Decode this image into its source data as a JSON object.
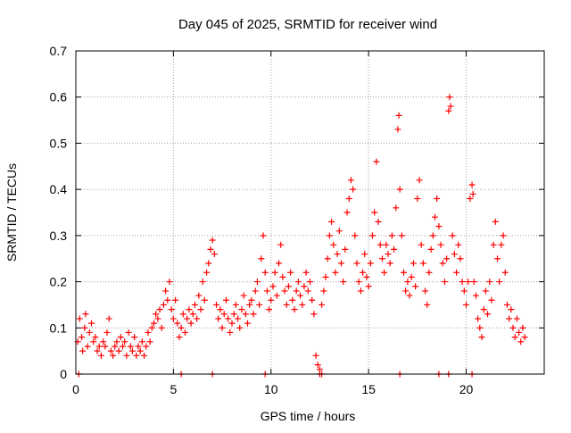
{
  "chart_data": {
    "type": "scatter",
    "title": "Day 045 of 2025, SRMTID for receiver wind",
    "xlabel": "GPS time / hours",
    "ylabel": "SRMTID / TECUs",
    "xlim": [
      0,
      24
    ],
    "ylim": [
      0,
      0.7
    ],
    "xticks": [
      0,
      5,
      10,
      15,
      20
    ],
    "xtick_labels": [
      "0",
      "5",
      "10",
      "15",
      "20"
    ],
    "yticks": [
      0,
      0.1,
      0.2,
      0.3,
      0.4,
      0.5,
      0.6,
      0.7
    ],
    "ytick_labels": [
      "0",
      "0.1",
      "0.2",
      "0.3",
      "0.4",
      "0.5",
      "0.6",
      "0.7"
    ],
    "grid": true,
    "marker": "+",
    "color": "#ff0000",
    "series": [
      {
        "name": "SRMTID",
        "points": [
          [
            0.1,
            0.07
          ],
          [
            0.2,
            0.12
          ],
          [
            0.3,
            0.08
          ],
          [
            0.35,
            0.05
          ],
          [
            0.45,
            0.1
          ],
          [
            0.5,
            0.13
          ],
          [
            0.6,
            0.06
          ],
          [
            0.7,
            0.09
          ],
          [
            0.8,
            0.11
          ],
          [
            0.9,
            0.07
          ],
          [
            1.0,
            0.08
          ],
          [
            1.1,
            0.05
          ],
          [
            1.2,
            0.06
          ],
          [
            1.3,
            0.04
          ],
          [
            1.4,
            0.07
          ],
          [
            1.5,
            0.06
          ],
          [
            1.6,
            0.09
          ],
          [
            1.7,
            0.12
          ],
          [
            1.8,
            0.05
          ],
          [
            1.9,
            0.04
          ],
          [
            2.0,
            0.06
          ],
          [
            2.1,
            0.07
          ],
          [
            2.2,
            0.05
          ],
          [
            2.3,
            0.08
          ],
          [
            2.4,
            0.06
          ],
          [
            2.5,
            0.07
          ],
          [
            2.6,
            0.04
          ],
          [
            2.7,
            0.09
          ],
          [
            2.8,
            0.06
          ],
          [
            2.9,
            0.05
          ],
          [
            3.0,
            0.08
          ],
          [
            3.1,
            0.04
          ],
          [
            3.2,
            0.06
          ],
          [
            3.3,
            0.05
          ],
          [
            3.4,
            0.07
          ],
          [
            3.5,
            0.04
          ],
          [
            3.6,
            0.06
          ],
          [
            3.7,
            0.09
          ],
          [
            3.8,
            0.07
          ],
          [
            3.9,
            0.1
          ],
          [
            4.0,
            0.11
          ],
          [
            4.1,
            0.13
          ],
          [
            4.2,
            0.12
          ],
          [
            4.3,
            0.14
          ],
          [
            4.4,
            0.1
          ],
          [
            4.5,
            0.15
          ],
          [
            4.6,
            0.18
          ],
          [
            4.7,
            0.16
          ],
          [
            4.8,
            0.2
          ],
          [
            4.9,
            0.14
          ],
          [
            5.0,
            0.12
          ],
          [
            5.1,
            0.16
          ],
          [
            5.2,
            0.11
          ],
          [
            5.3,
            0.08
          ],
          [
            5.4,
            0.1
          ],
          [
            5.5,
            0.13
          ],
          [
            5.6,
            0.09
          ],
          [
            5.7,
            0.12
          ],
          [
            5.8,
            0.14
          ],
          [
            5.9,
            0.11
          ],
          [
            6.0,
            0.13
          ],
          [
            6.1,
            0.15
          ],
          [
            6.2,
            0.12
          ],
          [
            6.3,
            0.17
          ],
          [
            6.4,
            0.14
          ],
          [
            6.5,
            0.2
          ],
          [
            6.6,
            0.16
          ],
          [
            6.7,
            0.22
          ],
          [
            6.8,
            0.24
          ],
          [
            6.9,
            0.27
          ],
          [
            7.0,
            0.29
          ],
          [
            7.1,
            0.26
          ],
          [
            7.2,
            0.15
          ],
          [
            7.3,
            0.12
          ],
          [
            7.4,
            0.14
          ],
          [
            7.5,
            0.1
          ],
          [
            7.6,
            0.13
          ],
          [
            7.7,
            0.16
          ],
          [
            7.8,
            0.12
          ],
          [
            7.9,
            0.09
          ],
          [
            8.0,
            0.11
          ],
          [
            8.1,
            0.13
          ],
          [
            8.2,
            0.15
          ],
          [
            8.3,
            0.12
          ],
          [
            8.4,
            0.1
          ],
          [
            8.5,
            0.14
          ],
          [
            8.6,
            0.17
          ],
          [
            8.7,
            0.13
          ],
          [
            8.8,
            0.11
          ],
          [
            8.9,
            0.15
          ],
          [
            9.0,
            0.16
          ],
          [
            9.1,
            0.13
          ],
          [
            9.2,
            0.18
          ],
          [
            9.3,
            0.2
          ],
          [
            9.4,
            0.15
          ],
          [
            9.5,
            0.25
          ],
          [
            9.6,
            0.3
          ],
          [
            9.7,
            0.22
          ],
          [
            9.8,
            0.18
          ],
          [
            9.9,
            0.14
          ],
          [
            10.0,
            0.16
          ],
          [
            10.1,
            0.19
          ],
          [
            10.2,
            0.22
          ],
          [
            10.3,
            0.17
          ],
          [
            10.4,
            0.24
          ],
          [
            10.5,
            0.28
          ],
          [
            10.6,
            0.21
          ],
          [
            10.7,
            0.18
          ],
          [
            10.8,
            0.15
          ],
          [
            10.9,
            0.19
          ],
          [
            11.0,
            0.22
          ],
          [
            11.1,
            0.16
          ],
          [
            11.2,
            0.14
          ],
          [
            11.3,
            0.18
          ],
          [
            11.4,
            0.2
          ],
          [
            11.5,
            0.17
          ],
          [
            11.6,
            0.15
          ],
          [
            11.7,
            0.19
          ],
          [
            11.8,
            0.22
          ],
          [
            11.9,
            0.18
          ],
          [
            12.0,
            0.2
          ],
          [
            12.1,
            0.16
          ],
          [
            12.2,
            0.13
          ],
          [
            12.3,
            0.04
          ],
          [
            12.4,
            0.02
          ],
          [
            12.5,
            0.01
          ],
          [
            12.6,
            0.15
          ],
          [
            12.7,
            0.18
          ],
          [
            12.8,
            0.21
          ],
          [
            12.9,
            0.25
          ],
          [
            13.0,
            0.3
          ],
          [
            13.1,
            0.33
          ],
          [
            13.2,
            0.28
          ],
          [
            13.3,
            0.22
          ],
          [
            13.4,
            0.26
          ],
          [
            13.5,
            0.31
          ],
          [
            13.6,
            0.24
          ],
          [
            13.7,
            0.2
          ],
          [
            13.8,
            0.27
          ],
          [
            13.9,
            0.35
          ],
          [
            14.0,
            0.38
          ],
          [
            14.1,
            0.42
          ],
          [
            14.2,
            0.4
          ],
          [
            14.3,
            0.3
          ],
          [
            14.4,
            0.24
          ],
          [
            14.5,
            0.2
          ],
          [
            14.6,
            0.18
          ],
          [
            14.7,
            0.22
          ],
          [
            14.8,
            0.26
          ],
          [
            14.9,
            0.21
          ],
          [
            15.0,
            0.19
          ],
          [
            15.1,
            0.24
          ],
          [
            15.2,
            0.3
          ],
          [
            15.3,
            0.35
          ],
          [
            15.4,
            0.46
          ],
          [
            15.5,
            0.33
          ],
          [
            15.6,
            0.28
          ],
          [
            15.7,
            0.25
          ],
          [
            15.8,
            0.22
          ],
          [
            15.9,
            0.28
          ],
          [
            16.0,
            0.26
          ],
          [
            16.1,
            0.24
          ],
          [
            16.2,
            0.3
          ],
          [
            16.3,
            0.27
          ],
          [
            16.4,
            0.36
          ],
          [
            16.5,
            0.53
          ],
          [
            16.55,
            0.56
          ],
          [
            16.6,
            0.4
          ],
          [
            16.7,
            0.3
          ],
          [
            16.8,
            0.22
          ],
          [
            16.9,
            0.18
          ],
          [
            17.0,
            0.2
          ],
          [
            17.1,
            0.17
          ],
          [
            17.2,
            0.21
          ],
          [
            17.3,
            0.24
          ],
          [
            17.4,
            0.19
          ],
          [
            17.5,
            0.38
          ],
          [
            17.6,
            0.42
          ],
          [
            17.7,
            0.28
          ],
          [
            17.8,
            0.24
          ],
          [
            17.9,
            0.18
          ],
          [
            18.0,
            0.15
          ],
          [
            18.1,
            0.22
          ],
          [
            18.2,
            0.27
          ],
          [
            18.3,
            0.3
          ],
          [
            18.4,
            0.34
          ],
          [
            18.5,
            0.38
          ],
          [
            18.6,
            0.32
          ],
          [
            18.7,
            0.28
          ],
          [
            18.8,
            0.24
          ],
          [
            18.9,
            0.2
          ],
          [
            19.0,
            0.25
          ],
          [
            19.1,
            0.57
          ],
          [
            19.15,
            0.6
          ],
          [
            19.2,
            0.58
          ],
          [
            19.3,
            0.3
          ],
          [
            19.4,
            0.26
          ],
          [
            19.5,
            0.22
          ],
          [
            19.6,
            0.28
          ],
          [
            19.7,
            0.25
          ],
          [
            19.8,
            0.2
          ],
          [
            19.9,
            0.18
          ],
          [
            20.0,
            0.15
          ],
          [
            20.1,
            0.2
          ],
          [
            20.2,
            0.38
          ],
          [
            20.3,
            0.41
          ],
          [
            20.35,
            0.39
          ],
          [
            20.4,
            0.2
          ],
          [
            20.5,
            0.17
          ],
          [
            20.6,
            0.12
          ],
          [
            20.7,
            0.1
          ],
          [
            20.8,
            0.08
          ],
          [
            20.9,
            0.14
          ],
          [
            21.0,
            0.18
          ],
          [
            21.1,
            0.13
          ],
          [
            21.2,
            0.2
          ],
          [
            21.3,
            0.16
          ],
          [
            21.4,
            0.28
          ],
          [
            21.5,
            0.33
          ],
          [
            21.6,
            0.25
          ],
          [
            21.7,
            0.2
          ],
          [
            21.8,
            0.28
          ],
          [
            21.9,
            0.3
          ],
          [
            22.0,
            0.22
          ],
          [
            22.1,
            0.15
          ],
          [
            22.2,
            0.12
          ],
          [
            22.3,
            0.14
          ],
          [
            22.4,
            0.1
          ],
          [
            22.5,
            0.08
          ],
          [
            22.6,
            0.12
          ],
          [
            22.7,
            0.09
          ],
          [
            22.8,
            0.07
          ],
          [
            22.9,
            0.1
          ],
          [
            23.0,
            0.08
          ],
          [
            0.15,
            0.0
          ],
          [
            5.4,
            0.0
          ],
          [
            7.0,
            0.0
          ],
          [
            9.7,
            0.0
          ],
          [
            12.5,
            0.0
          ],
          [
            12.6,
            0.0
          ],
          [
            16.6,
            0.0
          ],
          [
            18.6,
            0.0
          ],
          [
            19.1,
            0.0
          ],
          [
            20.3,
            0.0
          ]
        ]
      }
    ]
  }
}
